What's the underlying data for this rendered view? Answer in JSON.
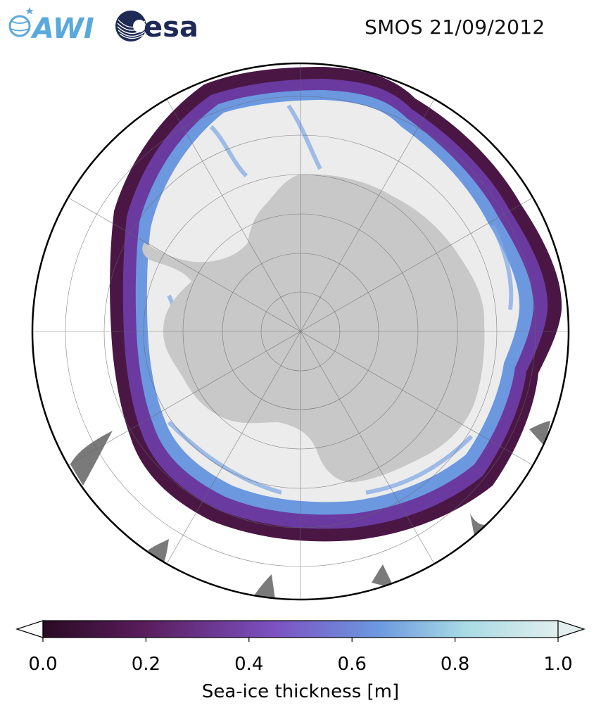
{
  "header": {
    "title": "SMOS 21/09/2012",
    "logos": [
      {
        "name": "awi-logo",
        "text": "AWI",
        "color": "#5aa9dc"
      },
      {
        "name": "esa-logo",
        "text": "esa",
        "color": "#1e2a55"
      }
    ]
  },
  "map": {
    "projection": "south-polar-stereographic",
    "colors": {
      "boundary": "#000000",
      "land": "#c8c8c8",
      "land_other": "#7a7a7a",
      "ocean": "#ffffff",
      "thick_ice": "#ececec",
      "gridline": "#666666"
    }
  },
  "colorbar": {
    "label": "Sea-ice thickness [m]",
    "range": [
      0.0,
      1.0
    ],
    "extend": "both",
    "ticks": [
      "0.0",
      "0.2",
      "0.4",
      "0.6",
      "0.8",
      "1.0"
    ],
    "colormap_stops": [
      "#2a0a23",
      "#5a1d5d",
      "#7c52c2",
      "#6c98e0",
      "#a8dbe4",
      "#e2eeee"
    ]
  }
}
